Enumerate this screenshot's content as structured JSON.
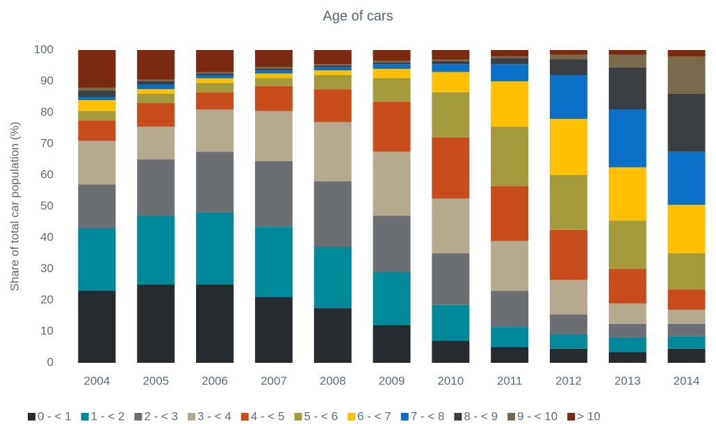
{
  "chart_data": {
    "type": "stacked_bar",
    "title": "Age of cars",
    "y_label": "Share of total car population (%)",
    "categories": [
      "2004",
      "2005",
      "2006",
      "2007",
      "2008",
      "2009",
      "2010",
      "2011",
      "2012",
      "2013",
      "2014"
    ],
    "ylim": [
      0,
      100
    ],
    "yticks": [
      0,
      10,
      20,
      30,
      40,
      50,
      60,
      70,
      80,
      90,
      100
    ],
    "grid": false,
    "legend": "bottom",
    "series": [
      {
        "name": "0 - < 1",
        "color": "#262b30",
        "values": [
          23,
          25,
          25,
          21,
          17.5,
          12,
          7,
          5,
          4.5,
          3.5,
          4.5
        ]
      },
      {
        "name": "1 - < 2",
        "color": "#00899b",
        "values": [
          20,
          22,
          23,
          22.5,
          19.5,
          17,
          11.5,
          6.5,
          4.5,
          4.5,
          4
        ]
      },
      {
        "name": "2 - < 3",
        "color": "#6b6e72",
        "values": [
          14,
          18,
          19.5,
          21,
          21,
          18,
          16.5,
          11.5,
          6.5,
          4.5,
          4
        ]
      },
      {
        "name": "3 - < 4",
        "color": "#b5aa90",
        "values": [
          14,
          10.5,
          13.5,
          16,
          19,
          20.5,
          17.5,
          16,
          11,
          6.5,
          4.5
        ]
      },
      {
        "name": "4 - < 5",
        "color": "#c84c1c",
        "values": [
          6.5,
          7.5,
          5.5,
          8,
          10.5,
          16,
          19.5,
          17.5,
          16,
          11,
          6.5
        ]
      },
      {
        "name": "5 - < 6",
        "color": "#a39a3c",
        "values": [
          3,
          3,
          3,
          2.5,
          4.5,
          7.5,
          14.5,
          19,
          17.5,
          15.5,
          11.5
        ]
      },
      {
        "name": "6 - < 7",
        "color": "#fec000",
        "values": [
          3.5,
          1.5,
          1.5,
          1.5,
          1.5,
          3,
          6.5,
          14.5,
          18,
          17,
          15.5
        ]
      },
      {
        "name": "7 - < 8",
        "color": "#0a70c8",
        "values": [
          1,
          1.5,
          1,
          1,
          1,
          1.5,
          2.5,
          5.5,
          14,
          18.5,
          17
        ]
      },
      {
        "name": "8 - < 9",
        "color": "#3c3f42",
        "values": [
          2,
          1,
          0.5,
          0.5,
          0.5,
          0.5,
          1,
          2,
          5,
          13.5,
          18.5
        ]
      },
      {
        "name": "9 - < 10",
        "color": "#7a6a4c",
        "values": [
          1,
          0.5,
          0.5,
          0.5,
          0.5,
          0.5,
          0.5,
          0.5,
          1.5,
          4,
          12
        ]
      },
      {
        "name": "> 10",
        "color": "#7b2a0f",
        "values": [
          12,
          9.5,
          7,
          5.5,
          4.5,
          3.5,
          3,
          2,
          1.5,
          1.5,
          2
        ]
      }
    ]
  }
}
